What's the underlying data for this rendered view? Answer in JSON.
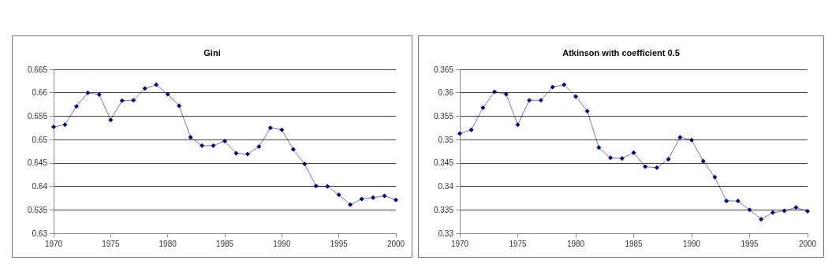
{
  "chart_data": [
    {
      "type": "line",
      "title": "Gini",
      "x": [
        1970,
        1971,
        1972,
        1973,
        1974,
        1975,
        1976,
        1977,
        1978,
        1979,
        1980,
        1981,
        1982,
        1983,
        1984,
        1985,
        1986,
        1987,
        1988,
        1989,
        1990,
        1991,
        1992,
        1993,
        1994,
        1995,
        1996,
        1997,
        1998,
        1999,
        2000
      ],
      "series": [
        {
          "color": "#000080",
          "values": [
            0.6527,
            0.6532,
            0.6571,
            0.66,
            0.6596,
            0.6542,
            0.6583,
            0.6584,
            0.6609,
            0.6617,
            0.6597,
            0.6572,
            0.6505,
            0.6487,
            0.6487,
            0.6497,
            0.6471,
            0.6469,
            0.6485,
            0.6525,
            0.6521,
            0.6479,
            0.6448,
            0.6401,
            0.64,
            0.6382,
            0.6361,
            0.6373,
            0.6376,
            0.638,
            0.6371
          ]
        }
      ],
      "xlim": [
        1970,
        2000
      ],
      "xticks": [
        1970,
        1975,
        1980,
        1985,
        1990,
        1995,
        2000
      ],
      "ylim": [
        0.63,
        0.665
      ],
      "yticks": [
        0.63,
        0.635,
        0.64,
        0.645,
        0.65,
        0.655,
        0.66,
        0.665
      ],
      "grid": "y",
      "marker": "diamond",
      "line_style": "solid"
    },
    {
      "type": "line",
      "title": "Atkinson with coefficient 0.5",
      "x": [
        1970,
        1971,
        1972,
        1973,
        1974,
        1975,
        1976,
        1977,
        1978,
        1979,
        1980,
        1981,
        1982,
        1983,
        1984,
        1985,
        1986,
        1987,
        1988,
        1989,
        1990,
        1991,
        1992,
        1993,
        1994,
        1995,
        1996,
        1997,
        1998,
        1999,
        2000
      ],
      "series": [
        {
          "color": "#000080",
          "values": [
            0.3513,
            0.3521,
            0.3568,
            0.3602,
            0.3597,
            0.3532,
            0.3584,
            0.3584,
            0.3612,
            0.3617,
            0.3592,
            0.3561,
            0.3483,
            0.3461,
            0.346,
            0.3472,
            0.3442,
            0.344,
            0.3458,
            0.3505,
            0.3499,
            0.3454,
            0.342,
            0.3369,
            0.3369,
            0.335,
            0.333,
            0.3344,
            0.3348,
            0.3355,
            0.3347
          ]
        }
      ],
      "xlim": [
        1970,
        2000
      ],
      "xticks": [
        1970,
        1975,
        1980,
        1985,
        1990,
        1995,
        2000
      ],
      "ylim": [
        0.33,
        0.365
      ],
      "yticks": [
        0.33,
        0.335,
        0.34,
        0.345,
        0.35,
        0.355,
        0.36,
        0.365
      ],
      "grid": "y",
      "marker": "diamond",
      "line_style": "solid"
    }
  ]
}
